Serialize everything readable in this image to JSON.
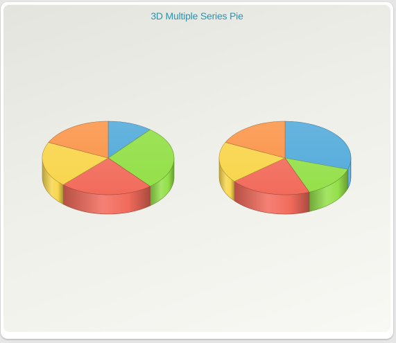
{
  "chart_data": {
    "type": "pie",
    "title": "3D Multiple Series Pie",
    "three_d": true,
    "colors": [
      "#5aaedc",
      "#94e04a",
      "#f26b5b",
      "#f8d64e",
      "#fb9a52"
    ],
    "series": [
      {
        "values": [
          11,
          28,
          23,
          20,
          18
        ]
      },
      {
        "values": [
          30,
          14,
          20,
          18,
          18
        ]
      }
    ]
  }
}
